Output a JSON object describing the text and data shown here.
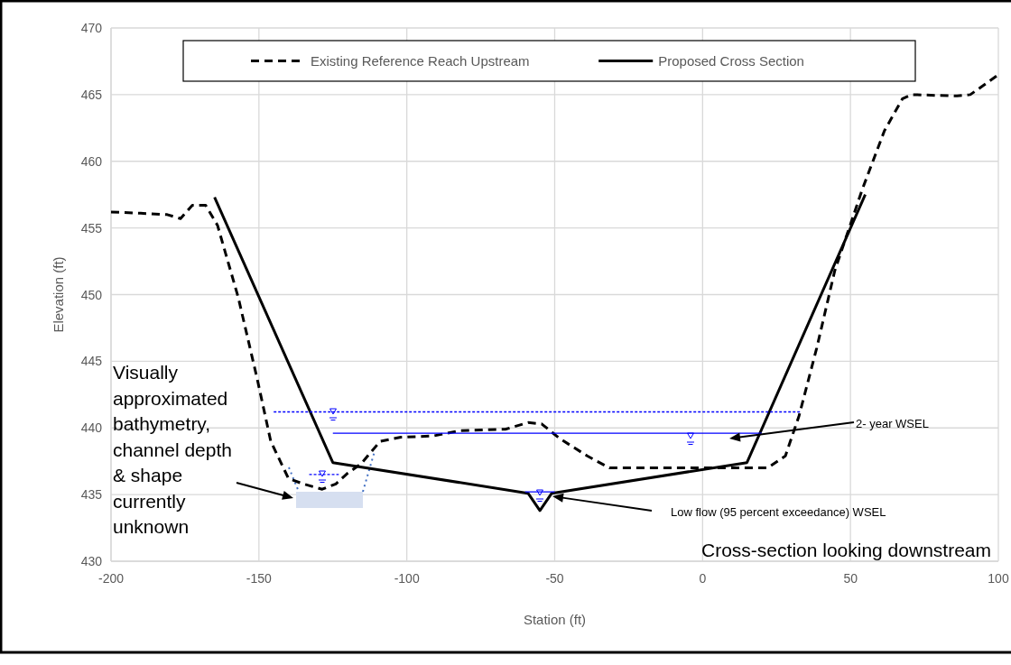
{
  "chart_data": {
    "type": "line",
    "xlabel": "Station (ft)",
    "ylabel": "Elevation (ft)",
    "xlim": [
      -200,
      100
    ],
    "xticks": [
      -200,
      -150,
      -100,
      -50,
      0,
      50,
      100
    ],
    "ylim": [
      430,
      470
    ],
    "yticks": [
      430,
      435,
      440,
      445,
      450,
      455,
      460,
      465,
      470
    ],
    "grid": true,
    "legend": "top",
    "series": [
      {
        "name": "Existing Reference Reach Upstream",
        "color": "#000000",
        "line_style": "dashed",
        "x": [
          -200,
          -190,
          -181,
          -176.5,
          -172.5,
          -168,
          -164,
          -157,
          -150.6,
          -146,
          -140,
          -135,
          -128.6,
          -124,
          -120,
          -115.5,
          -109,
          -102,
          -91,
          -82,
          -66.7,
          -59,
          -54.4,
          -48.3,
          -39,
          -31.5,
          -24,
          -5.6,
          13,
          22,
          28,
          32.6,
          38.6,
          44.7,
          54,
          61.5,
          67.6,
          70.7,
          86,
          90.5,
          95,
          100
        ],
        "values": [
          456.2,
          456.1,
          456,
          455.7,
          456.7,
          456.7,
          455.2,
          449.8,
          443.7,
          439,
          436.2,
          435.8,
          435.4,
          435.8,
          436.6,
          437.3,
          439,
          439.3,
          439.4,
          439.8,
          439.9,
          440.4,
          440.3,
          439.2,
          437.9,
          437,
          437,
          437,
          437,
          437,
          437.9,
          440.9,
          446,
          451.8,
          457.9,
          462.3,
          464.7,
          465,
          464.9,
          465,
          465.7,
          466.5
        ]
      },
      {
        "name": "Proposed Cross Section",
        "color": "#000000",
        "line_style": "solid",
        "x": [
          -165,
          -125,
          -59,
          -55,
          -51,
          15,
          55
        ],
        "values": [
          457.3,
          437.4,
          435.1,
          433.8,
          435.1,
          437.4,
          457.5
        ]
      },
      {
        "color": "#0000ff",
        "line_style": "dashed",
        "x": [
          -145,
          33
        ],
        "values": [
          441.2,
          441.2
        ]
      },
      {
        "color": "#0000ff",
        "line_style": "solid",
        "x": [
          -125,
          20
        ],
        "values": [
          439.6,
          439.6
        ]
      },
      {
        "color": "#0000ff",
        "line_style": "dashed",
        "x": [
          -133,
          -123
        ],
        "values": [
          436.5,
          436.5
        ]
      },
      {
        "color": "#0000ff",
        "line_style": "solid",
        "x": [
          -60,
          -50
        ],
        "values": [
          435.2,
          435.2
        ]
      }
    ],
    "annotations": [
      "Visually approximated bathymetry, channel depth & shape currently unknown",
      "2- year WSEL",
      "Low flow (95 percent exceedance) WSEL",
      "Cross-section looking downstream"
    ]
  }
}
